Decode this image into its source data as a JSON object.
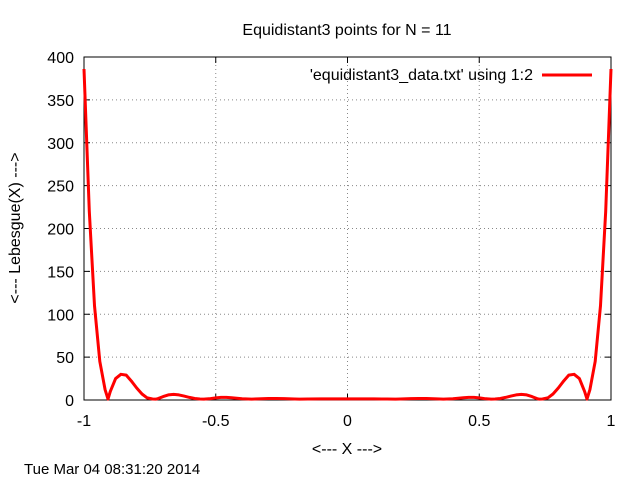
{
  "chart_data": {
    "type": "line",
    "title": "Equidistant3 points for N = 11",
    "xlabel": "<--- X --->",
    "ylabel": "<--- Lebesgue(X) --->",
    "xlim": [
      -1,
      1
    ],
    "ylim": [
      0,
      400
    ],
    "xticks": [
      -1,
      -0.5,
      0,
      0.5,
      1
    ],
    "xtick_labels": [
      "-1",
      "-0.5",
      "0",
      "0.5",
      "1"
    ],
    "yticks": [
      0,
      50,
      100,
      150,
      200,
      250,
      300,
      350,
      400
    ],
    "ytick_labels": [
      "0",
      "50",
      "100",
      "150",
      "200",
      "250",
      "300",
      "350",
      "400"
    ],
    "grid": true,
    "legend_position": "top-right",
    "series": [
      {
        "name": "'equidistant3_data.txt' using 1:2",
        "color": "#ff0000",
        "x": [
          -1.0,
          -0.98,
          -0.96,
          -0.94,
          -0.92,
          -0.909,
          -0.9,
          -0.88,
          -0.86,
          -0.84,
          -0.82,
          -0.8,
          -0.78,
          -0.76,
          -0.74,
          -0.727,
          -0.72,
          -0.7,
          -0.68,
          -0.66,
          -0.64,
          -0.62,
          -0.6,
          -0.58,
          -0.56,
          -0.545,
          -0.52,
          -0.5,
          -0.48,
          -0.46,
          -0.44,
          -0.42,
          -0.4,
          -0.364,
          -0.34,
          -0.3,
          -0.27,
          -0.24,
          -0.2,
          -0.182,
          -0.15,
          -0.1,
          -0.05,
          0.0,
          0.05,
          0.1,
          0.15,
          0.182,
          0.2,
          0.24,
          0.27,
          0.3,
          0.34,
          0.364,
          0.4,
          0.42,
          0.44,
          0.46,
          0.48,
          0.5,
          0.52,
          0.545,
          0.56,
          0.58,
          0.6,
          0.62,
          0.64,
          0.66,
          0.68,
          0.7,
          0.72,
          0.727,
          0.74,
          0.76,
          0.78,
          0.8,
          0.82,
          0.84,
          0.86,
          0.88,
          0.9,
          0.909,
          0.92,
          0.94,
          0.96,
          0.98,
          1.0
        ],
        "y": [
          386,
          220,
          110,
          45,
          12,
          1,
          10,
          25,
          30,
          29,
          22,
          14,
          7,
          2.5,
          1.2,
          1,
          1.5,
          4,
          6,
          6.5,
          6,
          4.5,
          3,
          1.8,
          1.2,
          1,
          1.6,
          2.5,
          3,
          3,
          2.6,
          2,
          1.4,
          1,
          1.3,
          1.7,
          1.8,
          1.6,
          1.2,
          1,
          1.2,
          1.3,
          1.3,
          1.3,
          1.3,
          1.3,
          1.2,
          1,
          1.2,
          1.6,
          1.8,
          1.7,
          1.3,
          1,
          1.4,
          2,
          2.6,
          3,
          3,
          2.5,
          1.6,
          1,
          1.2,
          1.8,
          3,
          4.5,
          6,
          6.5,
          6,
          4,
          1.5,
          1,
          1.2,
          2.5,
          7,
          14,
          22,
          29,
          30,
          25,
          10,
          1,
          12,
          45,
          110,
          220,
          386
        ]
      }
    ]
  },
  "footer": {
    "timestamp": "Tue Mar 04 08:31:20 2014"
  }
}
